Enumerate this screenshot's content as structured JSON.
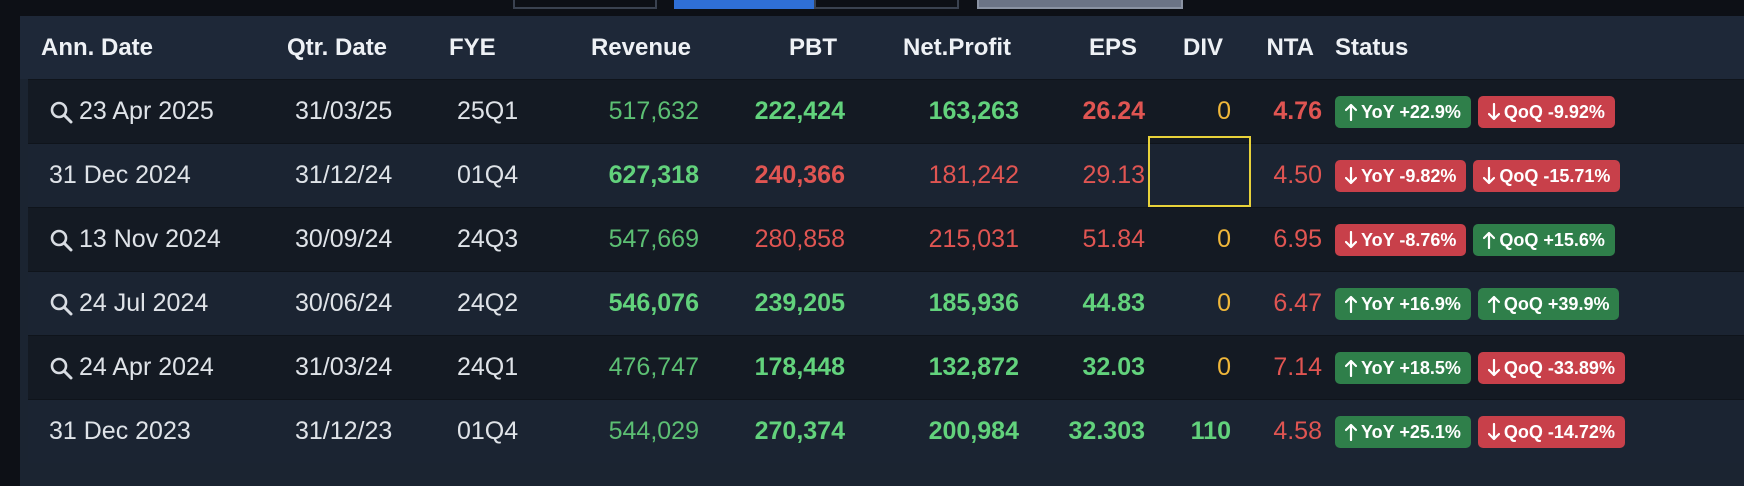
{
  "table": {
    "columns": [
      "Ann. Date",
      "Qtr. Date",
      "FYE",
      "Revenue",
      "PBT",
      "Net.Profit",
      "EPS",
      "DIV",
      "NTA",
      "Status"
    ],
    "rows": [
      {
        "ann_date": "23 Apr 2025",
        "qtr_date": "31/03/25",
        "fye": "25Q1",
        "revenue": "517,632",
        "pbt": "222,424",
        "net_profit": "163,263",
        "eps": "26.24",
        "div": "0",
        "nta": "4.76",
        "yoy": "YoY +22.9%",
        "qoq": "QoQ -9.92%"
      },
      {
        "ann_date": "31 Dec 2024",
        "qtr_date": "31/12/24",
        "fye": "01Q4",
        "revenue": "627,318",
        "pbt": "240,366",
        "net_profit": "181,242",
        "eps": "29.13",
        "nta": "4.50",
        "yoy": "YoY -9.82%",
        "qoq": "QoQ -15.71%"
      },
      {
        "ann_date": "13 Nov 2024",
        "qtr_date": "30/09/24",
        "fye": "24Q3",
        "revenue": "547,669",
        "pbt": "280,858",
        "net_profit": "215,031",
        "eps": "51.84",
        "div": "0",
        "nta": "6.95",
        "yoy": "YoY -8.76%",
        "qoq": "QoQ +15.6%"
      },
      {
        "ann_date": "24 Jul 2024",
        "qtr_date": "30/06/24",
        "fye": "24Q2",
        "revenue": "546,076",
        "pbt": "239,205",
        "net_profit": "185,936",
        "eps": "44.83",
        "div": "0",
        "nta": "6.47",
        "yoy": "YoY +16.9%",
        "qoq": "QoQ +39.9%"
      },
      {
        "ann_date": "24 Apr 2024",
        "qtr_date": "31/03/24",
        "fye": "24Q1",
        "revenue": "476,747",
        "pbt": "178,448",
        "net_profit": "132,872",
        "eps": "32.03",
        "div": "0",
        "nta": "7.14",
        "yoy": "YoY +18.5%",
        "qoq": "QoQ -33.89%"
      },
      {
        "ann_date": "31 Dec 2023",
        "qtr_date": "31/12/23",
        "fye": "01Q4",
        "revenue": "544,029",
        "pbt": "270,374",
        "net_profit": "200,984",
        "eps": "32.303",
        "div": "110",
        "nta": "4.58",
        "yoy": "YoY +25.1%",
        "qoq": "QoQ -14.72%"
      }
    ]
  }
}
